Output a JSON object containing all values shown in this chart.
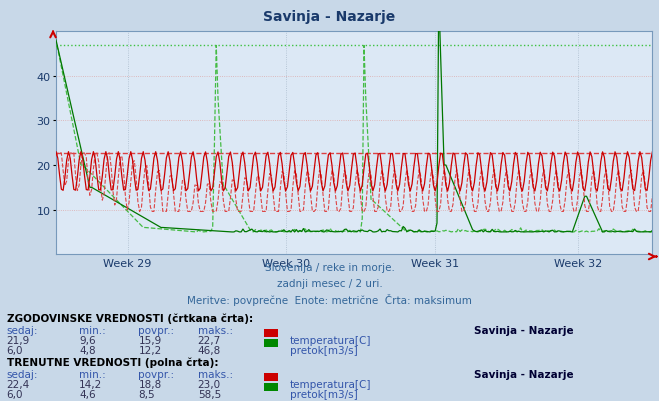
{
  "title": "Savinja - Nazarje",
  "title_color": "#1a3a6b",
  "bg_color": "#c8d8e8",
  "plot_bg_color": "#dce8f5",
  "subtitle_lines": [
    "Slovenija / reke in morje.",
    "zadnji mesec / 2 uri.",
    "Meritve: povprečne  Enote: metrične  Črta: maksimum"
  ],
  "xlabel_ticks": [
    "Week 29",
    "Week 30",
    "Week 31",
    "Week 32"
  ],
  "xlabel_tick_positions": [
    0.12,
    0.385,
    0.635,
    0.875
  ],
  "ylim": [
    0,
    50
  ],
  "yticks": [
    10,
    20,
    30,
    40
  ],
  "grid_color_h": "#ddaaaa",
  "grid_color_v": "#aabbcc",
  "n_points": 336,
  "legend_section1_title": "ZGODOVINSKE VREDNOSTI (črtkana črta):",
  "legend_section1_headers": [
    "sedaj:",
    "min.:",
    "povpr.:",
    "maks.:"
  ],
  "legend_section1_row1": [
    "21,9",
    "9,6",
    "15,9",
    "22,7"
  ],
  "legend_section1_row1_label": "temperatura[C]",
  "legend_section1_row1_color": "#cc0000",
  "legend_section1_row2": [
    "6,0",
    "4,8",
    "12,2",
    "46,8"
  ],
  "legend_section1_row2_label": "pretok[m3/s]",
  "legend_section1_row2_color": "#008800",
  "legend_section2_title": "TRENUTNE VREDNOSTI (polna črta):",
  "legend_section2_headers": [
    "sedaj:",
    "min.:",
    "povpr.:",
    "maks.:"
  ],
  "legend_section2_row1": [
    "22,4",
    "14,2",
    "18,8",
    "23,0"
  ],
  "legend_section2_row1_label": "temperatura[C]",
  "legend_section2_row1_color": "#cc0000",
  "legend_section2_row2": [
    "6,0",
    "4,6",
    "8,5",
    "58,5"
  ],
  "legend_section2_row2_label": "pretok[m3/s]",
  "legend_section2_row2_color": "#008800",
  "station_label": "Savinja - Nazarje",
  "temp_dashed_color": "#dd4444",
  "temp_solid_color": "#cc0000",
  "flow_dashed_color": "#44bb44",
  "flow_solid_color": "#007700",
  "hline_temp_color": "#dd2222",
  "hline_flow_color": "#22bb22",
  "hline_temp_val": 22.7,
  "hline_flow_hist_val": 46.8,
  "hline_flow_curr_val": 58.5
}
